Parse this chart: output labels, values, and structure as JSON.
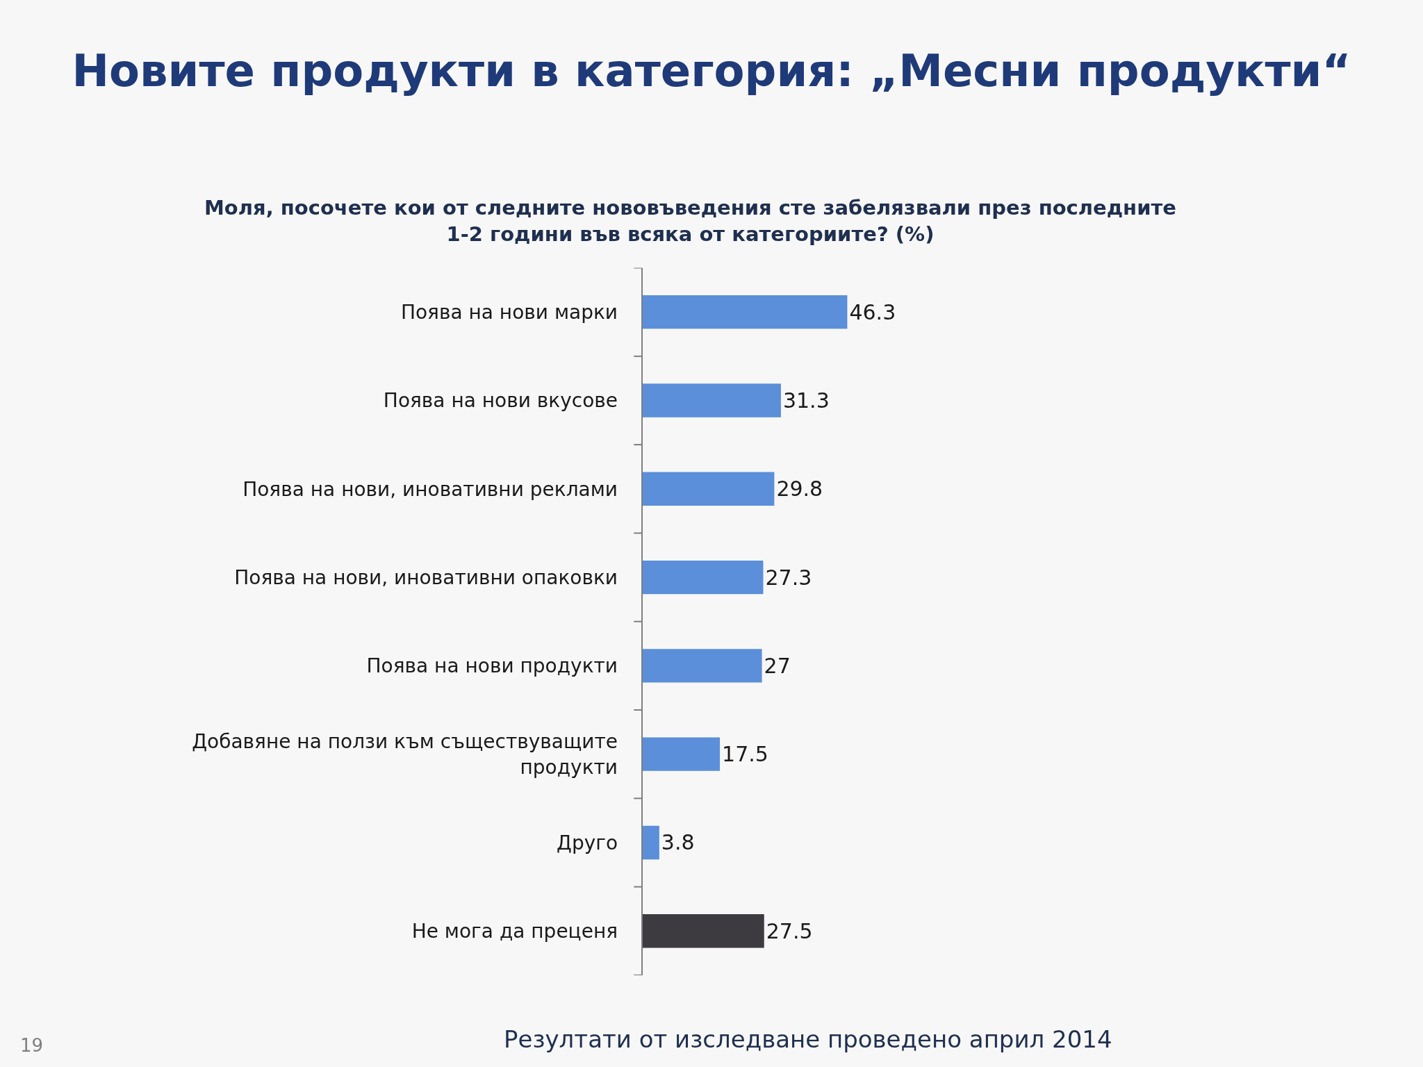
{
  "chart_data": {
    "type": "bar",
    "orientation": "horizontal",
    "title": "Новите продукти в категория: „Месни продукти“",
    "subtitle": "Моля, посочете кои от следните нововъведения сте забелязвали през последните\n1-2 години във всяка от категориите? (%)",
    "categories": [
      "Поява на нови марки",
      "Поява на нови вкусове",
      "Поява на нови, иновативни реклами",
      "Поява на нови, иновативни опаковки",
      "Поява на нови продукти",
      "Добавяне на ползи към съществуващите продукти",
      "Друго",
      "Не мога да преценя"
    ],
    "values": [
      46.3,
      31.3,
      29.8,
      27.3,
      27,
      17.5,
      3.8,
      27.5
    ],
    "colors": [
      "#5b8fd9",
      "#5b8fd9",
      "#5b8fd9",
      "#5b8fd9",
      "#5b8fd9",
      "#5b8fd9",
      "#5b8fd9",
      "#3d3b3f"
    ],
    "data_labels": true,
    "legend": false,
    "grid": false,
    "annotations": [
      "19",
      "Резултати от изследване проведено април 2014"
    ]
  }
}
